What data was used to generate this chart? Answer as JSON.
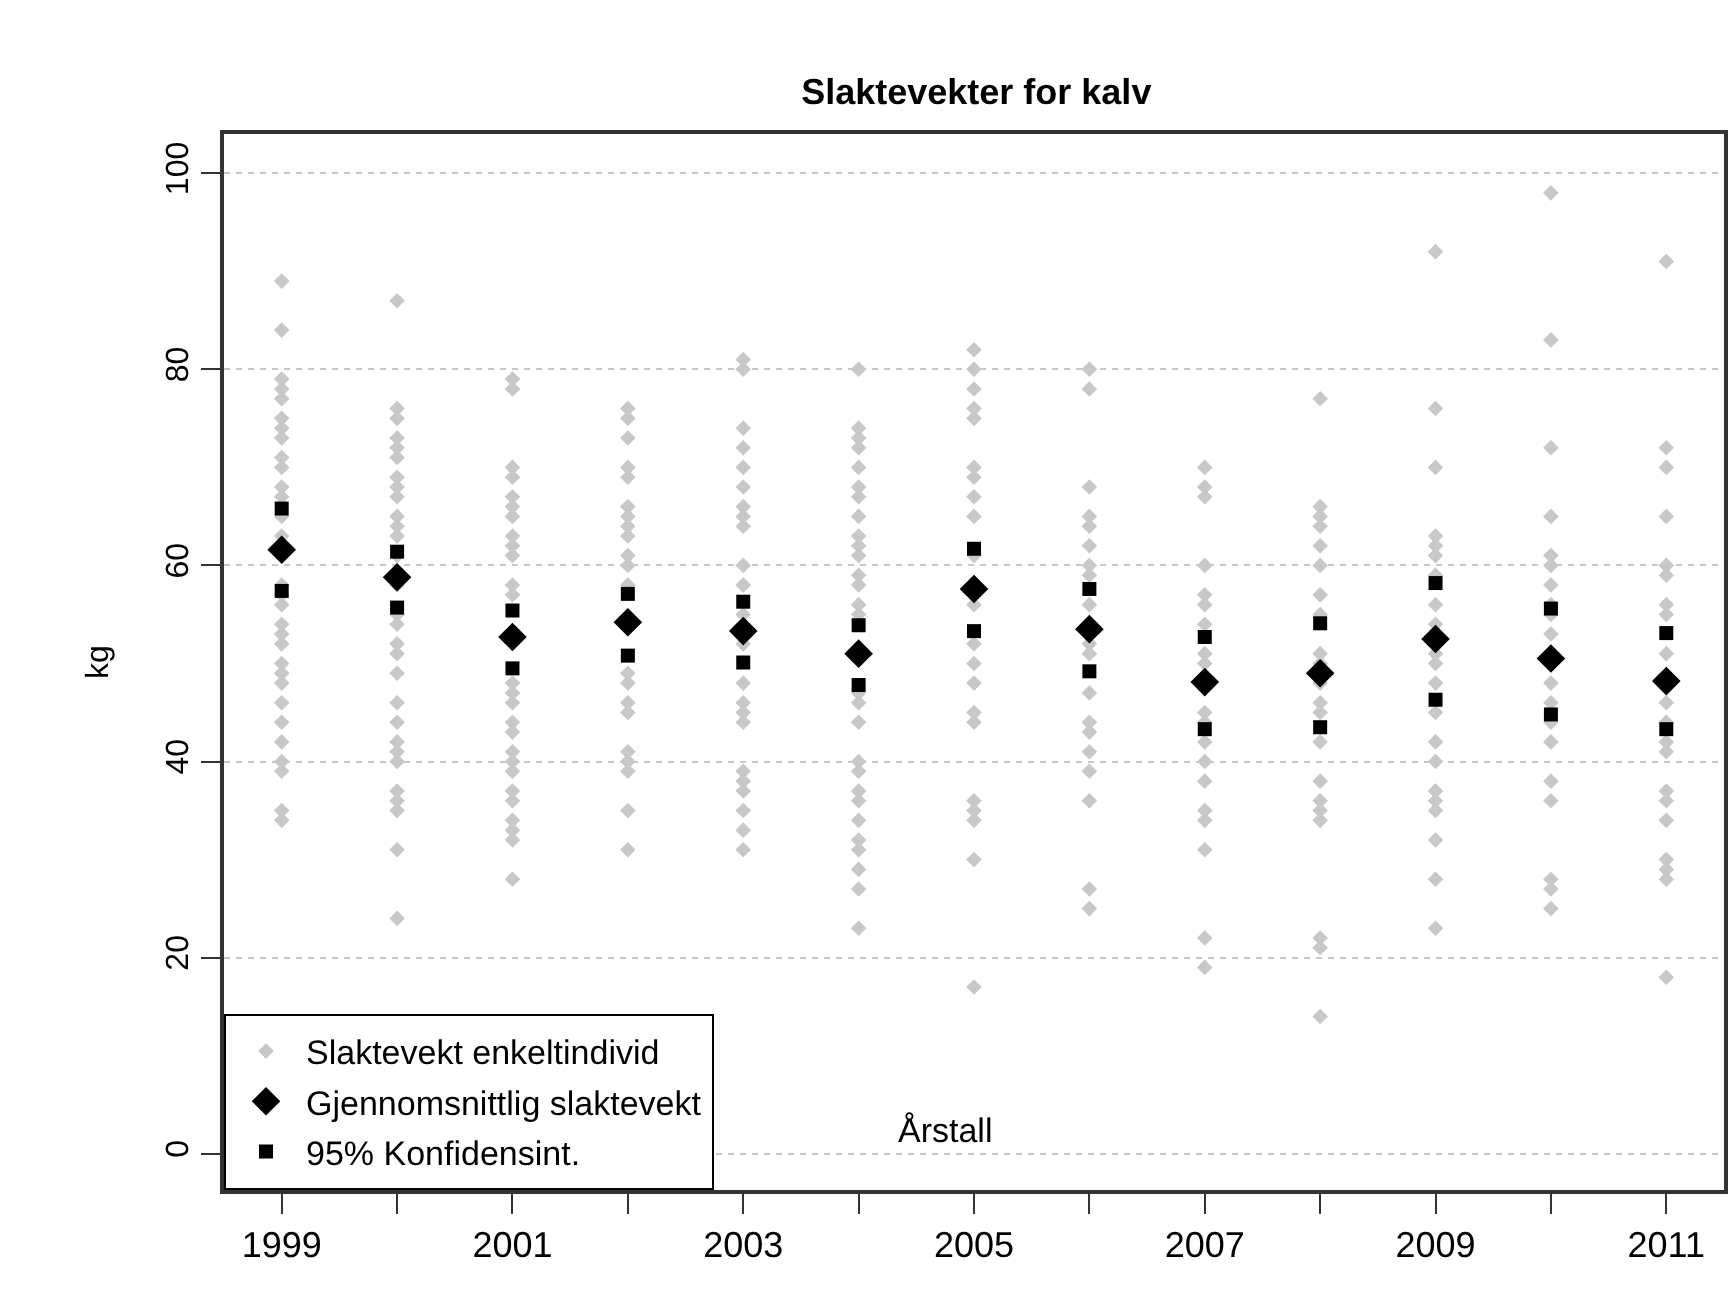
{
  "chart_data": {
    "type": "scatter",
    "title": "Slaktevekter for kalv",
    "xlabel": "Årstall",
    "ylabel": "kg",
    "xlim": [
      1998.5,
      2011.5
    ],
    "ylim": [
      -3.7,
      104
    ],
    "xticks": [
      1999,
      {
        "value": 2000,
        "label": null
      },
      2001,
      {
        "value": 2002,
        "label": null
      },
      2003,
      {
        "value": 2004,
        "label": null
      },
      2005,
      {
        "value": 2006,
        "label": null
      },
      2007,
      {
        "value": 2008,
        "label": null
      },
      2009,
      {
        "value": 2010,
        "label": null
      },
      2011
    ],
    "yticks": [
      0,
      20,
      40,
      60,
      80,
      100
    ],
    "grid": "y",
    "legend": "bottom left",
    "series": [
      {
        "name": "Slaktevekt enkeltindivid",
        "color": "#c8c8c8",
        "marker": "diamond",
        "x": [
          1999,
          1999,
          1999,
          1999,
          1999,
          1999,
          1999,
          1999,
          1999,
          1999,
          1999,
          1999,
          1999,
          1999,
          1999,
          1999,
          1999,
          1999,
          1999,
          1999,
          1999,
          1999,
          1999,
          1999,
          1999,
          1999,
          1999,
          1999,
          1999,
          1999,
          2000,
          2000,
          2000,
          2000,
          2000,
          2000,
          2000,
          2000,
          2000,
          2000,
          2000,
          2000,
          2000,
          2000,
          2000,
          2000,
          2000,
          2000,
          2000,
          2000,
          2000,
          2000,
          2000,
          2000,
          2000,
          2000,
          2000,
          2000,
          2000,
          2001,
          2001,
          2001,
          2001,
          2001,
          2001,
          2001,
          2001,
          2001,
          2001,
          2001,
          2001,
          2001,
          2001,
          2001,
          2001,
          2001,
          2001,
          2001,
          2001,
          2001,
          2001,
          2001,
          2001,
          2001,
          2001,
          2002,
          2002,
          2002,
          2002,
          2002,
          2002,
          2002,
          2002,
          2002,
          2002,
          2002,
          2002,
          2002,
          2002,
          2002,
          2002,
          2002,
          2002,
          2002,
          2002,
          2002,
          2003,
          2003,
          2003,
          2003,
          2003,
          2003,
          2003,
          2003,
          2003,
          2003,
          2003,
          2003,
          2003,
          2003,
          2003,
          2003,
          2003,
          2003,
          2003,
          2003,
          2003,
          2003,
          2003,
          2003,
          2004,
          2004,
          2004,
          2004,
          2004,
          2004,
          2004,
          2004,
          2004,
          2004,
          2004,
          2004,
          2004,
          2004,
          2004,
          2004,
          2004,
          2004,
          2004,
          2004,
          2004,
          2004,
          2004,
          2004,
          2004,
          2004,
          2004,
          2004,
          2005,
          2005,
          2005,
          2005,
          2005,
          2005,
          2005,
          2005,
          2005,
          2005,
          2005,
          2005,
          2005,
          2005,
          2005,
          2005,
          2005,
          2005,
          2005,
          2005,
          2005,
          2006,
          2006,
          2006,
          2006,
          2006,
          2006,
          2006,
          2006,
          2006,
          2006,
          2006,
          2006,
          2006,
          2006,
          2006,
          2006,
          2006,
          2006,
          2006,
          2007,
          2007,
          2007,
          2007,
          2007,
          2007,
          2007,
          2007,
          2007,
          2007,
          2007,
          2007,
          2007,
          2007,
          2007,
          2007,
          2007,
          2007,
          2007,
          2008,
          2008,
          2008,
          2008,
          2008,
          2008,
          2008,
          2008,
          2008,
          2008,
          2008,
          2008,
          2008,
          2008,
          2008,
          2008,
          2008,
          2008,
          2008,
          2008,
          2008,
          2009,
          2009,
          2009,
          2009,
          2009,
          2009,
          2009,
          2009,
          2009,
          2009,
          2009,
          2009,
          2009,
          2009,
          2009,
          2009,
          2009,
          2009,
          2009,
          2009,
          2009,
          2010,
          2010,
          2010,
          2010,
          2010,
          2010,
          2010,
          2010,
          2010,
          2010,
          2010,
          2010,
          2010,
          2010,
          2010,
          2010,
          2010,
          2010,
          2010,
          2011,
          2011,
          2011,
          2011,
          2011,
          2011,
          2011,
          2011,
          2011,
          2011,
          2011,
          2011,
          2011,
          2011,
          2011,
          2011,
          2011,
          2011,
          2011,
          2011
        ],
        "values": [
          89,
          84,
          79,
          78,
          77,
          75,
          74,
          73,
          71,
          70,
          68,
          67,
          65,
          63,
          58,
          57,
          56,
          54,
          53,
          52,
          50,
          49,
          48,
          46,
          44,
          42,
          40,
          39,
          35,
          34,
          87,
          76,
          75,
          73,
          72,
          71,
          69,
          68,
          67,
          65,
          64,
          63,
          61,
          58,
          55,
          54,
          52,
          51,
          49,
          46,
          44,
          42,
          41,
          40,
          37,
          36,
          35,
          31,
          24,
          79,
          78,
          70,
          69,
          67,
          66,
          65,
          63,
          62,
          61,
          58,
          57,
          48,
          47,
          46,
          44,
          43,
          41,
          40,
          39,
          37,
          36,
          34,
          33,
          32,
          28,
          76,
          75,
          73,
          70,
          69,
          66,
          65,
          64,
          63,
          61,
          60,
          58,
          49,
          48,
          46,
          45,
          41,
          40,
          39,
          35,
          31,
          81,
          80,
          74,
          72,
          70,
          68,
          66,
          65,
          64,
          60,
          58,
          58,
          55,
          52,
          48,
          46,
          45,
          44,
          39,
          38,
          37,
          35,
          33,
          31,
          80,
          74,
          73,
          72,
          70,
          68,
          67,
          65,
          63,
          62,
          61,
          59,
          58,
          56,
          55,
          47,
          46,
          44,
          40,
          39,
          37,
          36,
          34,
          32,
          31,
          29,
          27,
          23,
          82,
          80,
          78,
          76,
          75,
          70,
          69,
          67,
          65,
          61,
          56,
          52,
          50,
          48,
          45,
          44,
          36,
          35,
          34,
          30,
          17,
          80,
          78,
          68,
          65,
          64,
          62,
          60,
          59,
          56,
          52,
          51,
          47,
          44,
          43,
          41,
          39,
          36,
          27,
          25,
          70,
          68,
          67,
          60,
          57,
          56,
          54,
          51,
          50,
          45,
          44,
          42,
          40,
          38,
          35,
          34,
          31,
          22,
          19,
          77,
          66,
          65,
          64,
          62,
          60,
          57,
          55,
          51,
          50,
          48,
          46,
          45,
          42,
          38,
          36,
          35,
          34,
          22,
          21,
          14,
          92,
          76,
          70,
          63,
          62,
          61,
          59,
          56,
          54,
          51,
          50,
          48,
          45,
          42,
          40,
          37,
          36,
          35,
          32,
          28,
          23,
          98,
          83,
          72,
          65,
          61,
          60,
          58,
          56,
          55,
          53,
          48,
          46,
          44,
          42,
          38,
          36,
          28,
          27,
          25,
          91,
          72,
          70,
          65,
          60,
          59,
          56,
          55,
          51,
          46,
          44,
          42,
          41,
          37,
          36,
          34,
          30,
          29,
          28,
          18
        ]
      },
      {
        "name": "Gjennomsnittlig slaktevekt",
        "color": "#000000",
        "marker": "diamond",
        "x": [
          1999,
          2000,
          2001,
          2002,
          2003,
          2004,
          2005,
          2006,
          2007,
          2008,
          2009,
          2010,
          2011
        ],
        "values": [
          61.6,
          58.8,
          52.7,
          54.2,
          53.3,
          51.0,
          57.6,
          53.5,
          48.1,
          49.0,
          52.5,
          50.5,
          48.2
        ]
      },
      {
        "name": "95% Konfidensint.",
        "color": "#000000",
        "marker": "square",
        "x": [
          1999,
          1999,
          2000,
          2000,
          2001,
          2001,
          2002,
          2002,
          2003,
          2003,
          2004,
          2004,
          2005,
          2005,
          2006,
          2006,
          2007,
          2007,
          2008,
          2008,
          2009,
          2009,
          2010,
          2010,
          2011,
          2011
        ],
        "values": [
          65.8,
          57.4,
          61.4,
          55.7,
          55.4,
          49.5,
          57.1,
          50.8,
          56.3,
          50.1,
          53.9,
          47.8,
          61.7,
          53.3,
          57.6,
          49.2,
          52.7,
          43.3,
          54.1,
          43.5,
          58.2,
          46.3,
          55.6,
          44.8,
          53.1,
          43.3
        ]
      }
    ]
  }
}
